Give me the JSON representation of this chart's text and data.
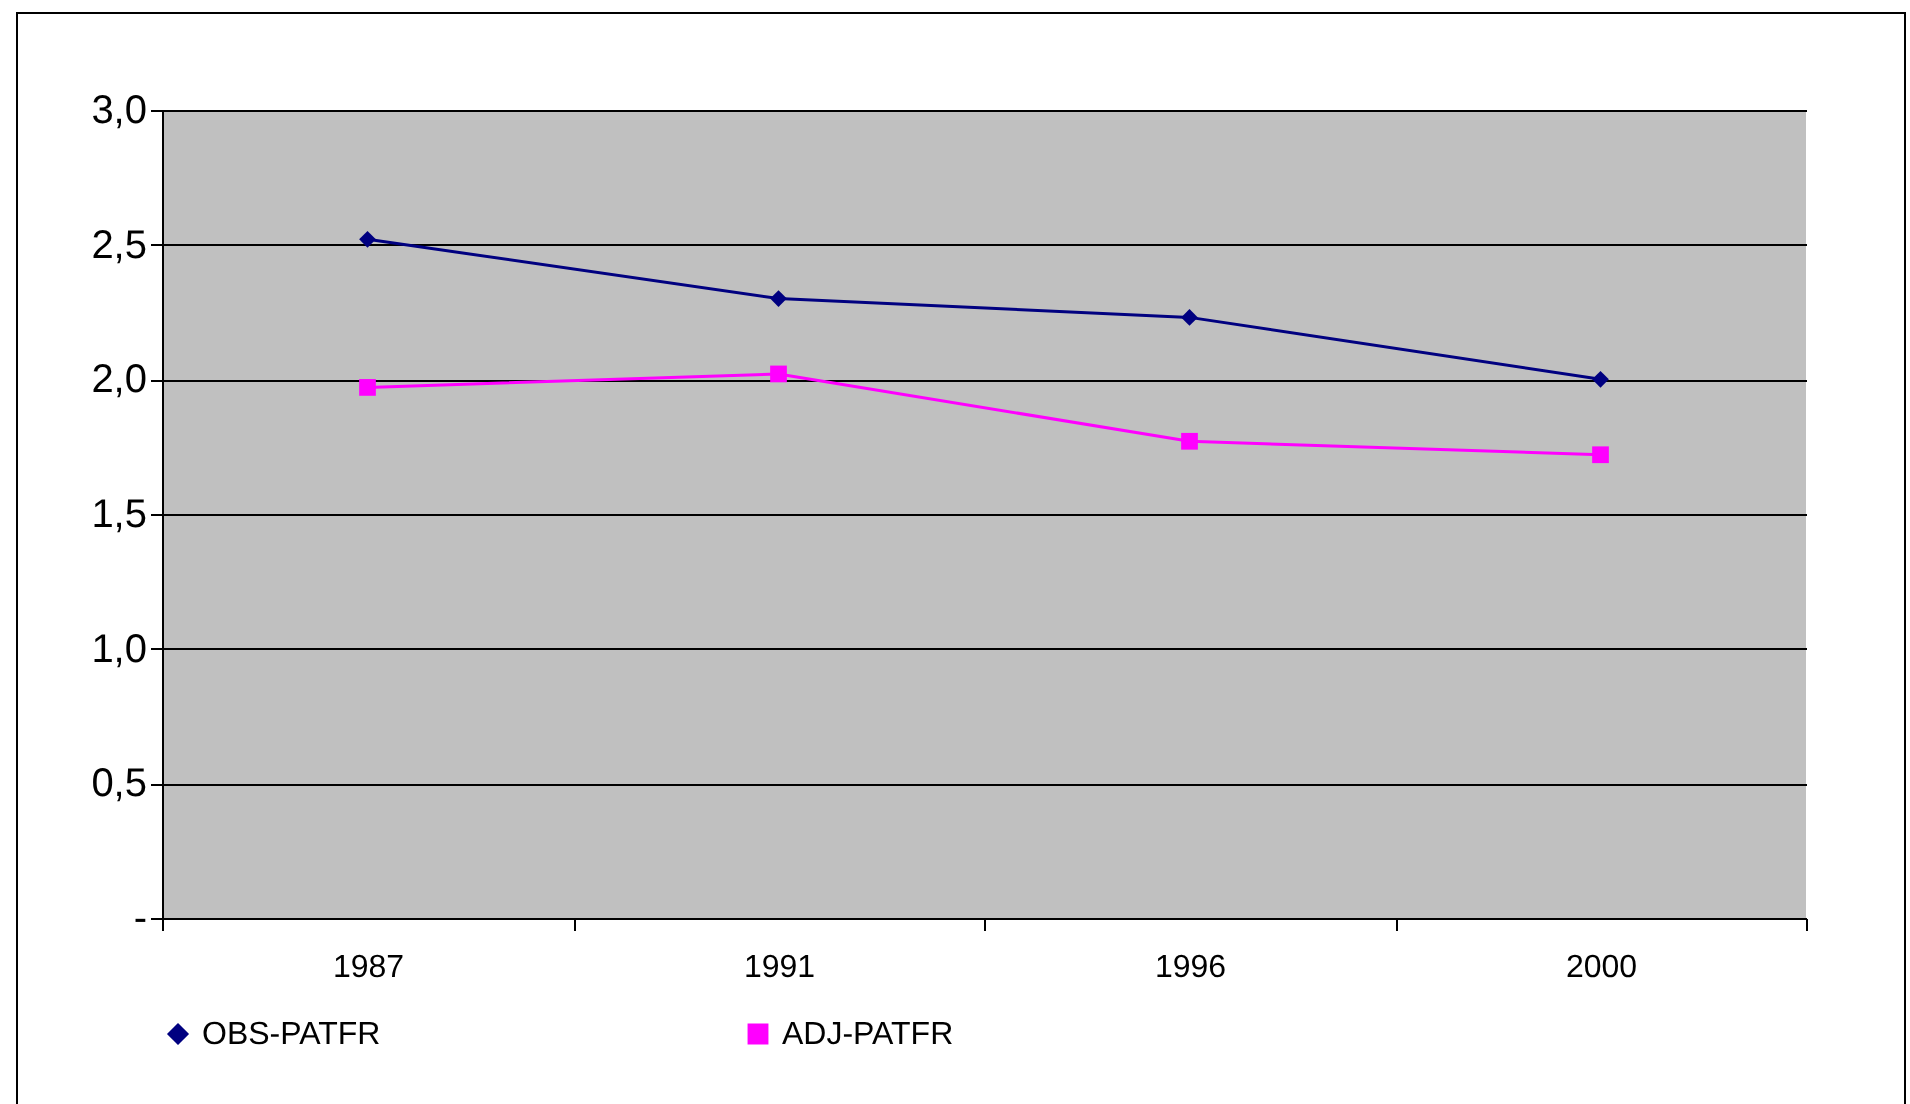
{
  "chart_data": {
    "type": "line",
    "categories": [
      "1987",
      "1991",
      "1996",
      "2000"
    ],
    "series": [
      {
        "name": "OBS-PATFR",
        "color": "#000080",
        "marker": "diamond",
        "values": [
          2.52,
          2.3,
          2.23,
          2.0
        ]
      },
      {
        "name": "ADJ-PATFR",
        "color": "#ff00ff",
        "marker": "square",
        "values": [
          1.97,
          2.02,
          1.77,
          1.72
        ]
      }
    ],
    "ylim": [
      0,
      3
    ],
    "yticks": [
      {
        "value": 0,
        "label": "-"
      },
      {
        "value": 0.5,
        "label": "0,5"
      },
      {
        "value": 1,
        "label": "1,0"
      },
      {
        "value": 1.5,
        "label": "1,5"
      },
      {
        "value": 2,
        "label": "2,0"
      },
      {
        "value": 2.5,
        "label": "2,5"
      },
      {
        "value": 3,
        "label": "3,0"
      }
    ],
    "grid": "y",
    "legend": "bottom",
    "line_style": "solid"
  }
}
